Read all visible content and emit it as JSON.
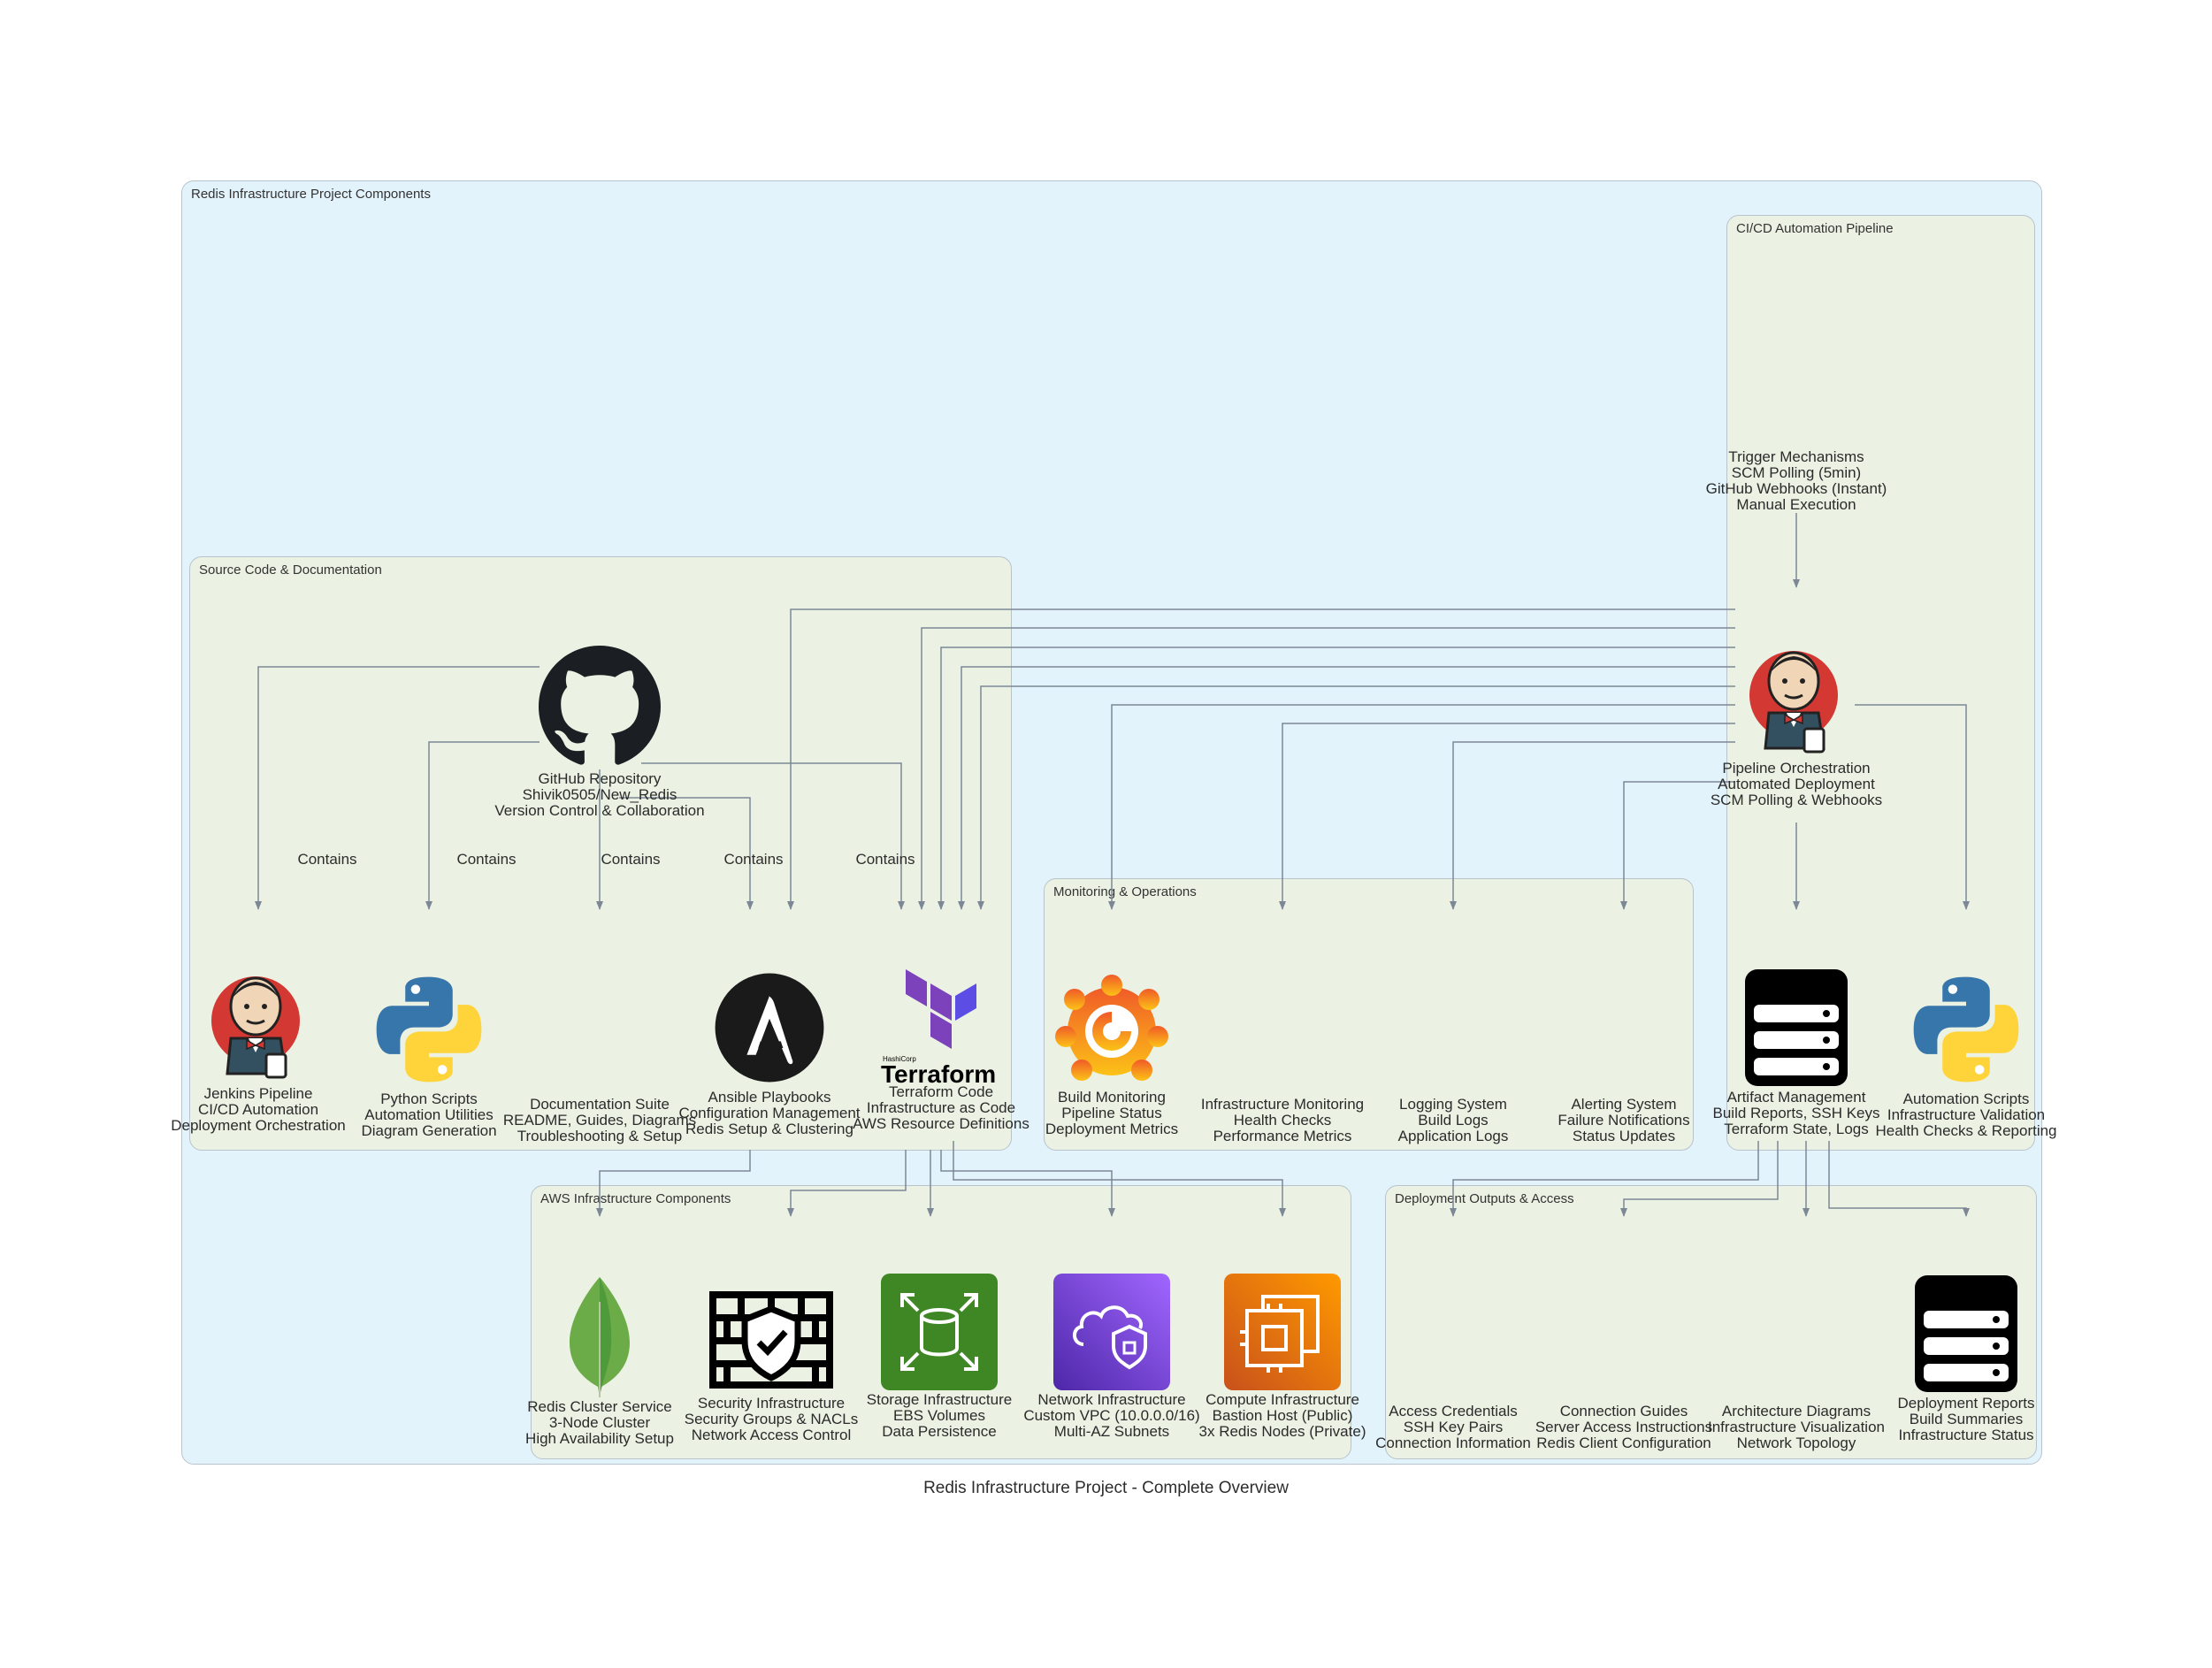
{
  "title": "Redis Infrastructure Project - Complete Overview",
  "clusters": {
    "outer": "Redis Infrastructure Project Components",
    "cicd": "CI/CD Automation Pipeline",
    "source": "Source Code & Documentation",
    "monitoring": "Monitoring & Operations",
    "aws": "AWS Infrastructure Components",
    "deploy": "Deployment Outputs & Access"
  },
  "edge_label": "Contains",
  "nodes": {
    "trigger": {
      "label": "Trigger Mechanisms\nSCM Polling (5min)\nGitHub Webhooks (Instant)\nManual Execution",
      "icon": "none"
    },
    "orchestration": {
      "label": "Pipeline Orchestration\nAutomated Deployment\nSCM Polling & Webhooks",
      "icon": "jenkins-icon"
    },
    "github": {
      "label": "GitHub Repository\nShivik0505/New_Redis\nVersion Control & Collaboration",
      "icon": "github-icon"
    },
    "jenkins_pipeline": {
      "label": "Jenkins Pipeline\nCI/CD Automation\nDeployment Orchestration",
      "icon": "jenkins-icon"
    },
    "python_scripts": {
      "label": "Python Scripts\nAutomation Utilities\nDiagram Generation",
      "icon": "python-icon"
    },
    "docs": {
      "label": "Documentation Suite\nREADME, Guides, Diagrams\nTroubleshooting & Setup",
      "icon": "none"
    },
    "ansible": {
      "label": "Ansible Playbooks\nConfiguration Management\nRedis Setup & Clustering",
      "icon": "ansible-icon"
    },
    "terraform": {
      "label": "Terraform Code\nInfrastructure as Code\nAWS Resource Definitions",
      "icon": "terraform-icon",
      "brand_small": "HashiCorp",
      "brand": "Terraform"
    },
    "build_mon": {
      "label": "Build Monitoring\nPipeline Status\nDeployment Metrics",
      "icon": "grafana-icon"
    },
    "infra_mon": {
      "label": "Infrastructure Monitoring\nHealth Checks\nPerformance Metrics",
      "icon": "none"
    },
    "logging": {
      "label": "Logging System\nBuild Logs\nApplication Logs",
      "icon": "none"
    },
    "alerting": {
      "label": "Alerting System\nFailure Notifications\nStatus Updates",
      "icon": "none"
    },
    "artifact": {
      "label": "Artifact Management\nBuild Reports, SSH Keys\nTerraform State, Logs",
      "icon": "storage-icon"
    },
    "automation": {
      "label": "Automation Scripts\nInfrastructure Validation\nHealth Checks & Reporting",
      "icon": "python-icon"
    },
    "redis": {
      "label": "Redis Cluster Service\n3-Node Cluster\nHigh Availability Setup",
      "icon": "mongodb-leaf-icon"
    },
    "security": {
      "label": "Security Infrastructure\nSecurity Groups & NACLs\nNetwork Access Control",
      "icon": "firewall-icon"
    },
    "storage": {
      "label": "Storage Infrastructure\nEBS Volumes\nData Persistence",
      "icon": "ebs-icon"
    },
    "network": {
      "label": "Network Infrastructure\nCustom VPC (10.0.0.0/16)\nMulti-AZ Subnets",
      "icon": "vpc-icon"
    },
    "compute": {
      "label": "Compute Infrastructure\nBastion Host (Public)\n3x Redis Nodes (Private)",
      "icon": "ec2-icon"
    },
    "access": {
      "label": "Access Credentials\nSSH Key Pairs\nConnection Information",
      "icon": "none"
    },
    "guides": {
      "label": "Connection Guides\nServer Access Instructions\nRedis Client Configuration",
      "icon": "none"
    },
    "arch": {
      "label": "Architecture Diagrams\nInfrastructure Visualization\nNetwork Topology",
      "icon": "none"
    },
    "reports": {
      "label": "Deployment Reports\nBuild Summaries\nInfrastructure Status",
      "icon": "storage-icon"
    }
  },
  "colors": {
    "outer_bg": "#e3f3fb",
    "inner_bg": "#ebf1e3",
    "edge": "#7c8896",
    "terraform": "#7b42bc",
    "ebs": "#3f8624",
    "vpc": "#8c4fff",
    "ec2": "#ed7100"
  }
}
